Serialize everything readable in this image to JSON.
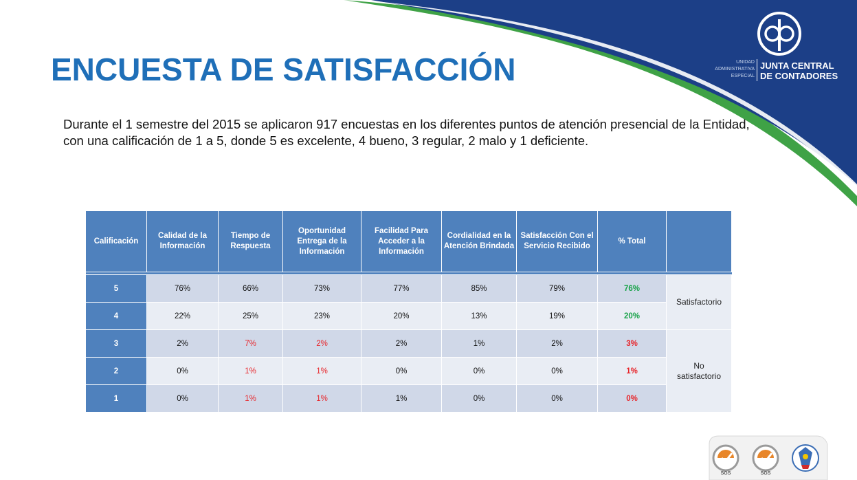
{
  "title": "ENCUESTA DE SATISFACCIÓN",
  "intro": "Durante el 1 semestre del 2015 se aplicaron 917 encuestas en los diferentes puntos de atención presencial de la Entidad, con una calificación de 1 a 5, donde 5 es excelente, 4 bueno, 3 regular, 2 malo y 1 deficiente.",
  "logo": {
    "side_lines": [
      "UNIDAD",
      "ADMINISTRATIVA",
      "ESPECIAL"
    ],
    "name_lines": [
      "JUNTA CENTRAL",
      "DE CONTADORES"
    ]
  },
  "colors": {
    "title_blue": "#1f6fb8",
    "header_blue": "#4f81bd",
    "swoosh_navy": "#1c3f87",
    "swoosh_green": "#3fa246",
    "positive_green": "#1aa34a",
    "negative_red": "#e8252a"
  },
  "table": {
    "headers": [
      "Calificación",
      "Calidad de la Información",
      "Tiempo de Respuesta",
      "Oportunidad Entrega de la Información",
      "Facilidad Para Acceder a la Información",
      "Cordialidad en la Atención Brindada",
      "Satisfacción Con el Servicio Recibido",
      "% Total",
      ""
    ],
    "rows": [
      {
        "rating": "5",
        "values": [
          "76%",
          "66%",
          "73%",
          "77%",
          "85%",
          "79%"
        ],
        "total": "76%"
      },
      {
        "rating": "4",
        "values": [
          "22%",
          "25%",
          "23%",
          "20%",
          "13%",
          "19%"
        ],
        "total": "20%"
      },
      {
        "rating": "3",
        "values": [
          "2%",
          "7%",
          "2%",
          "2%",
          "1%",
          "2%"
        ],
        "total": "3%"
      },
      {
        "rating": "2",
        "values": [
          "0%",
          "1%",
          "1%",
          "0%",
          "0%",
          "0%"
        ],
        "total": "1%"
      },
      {
        "rating": "1",
        "values": [
          "0%",
          "1%",
          "1%",
          "1%",
          "0%",
          "0%"
        ],
        "total": "0%"
      }
    ],
    "groups": {
      "satisfied": "Satisfactorio",
      "not_satisfied_lines": [
        "No",
        "satisfactorio"
      ]
    }
  },
  "certifications": {
    "badges": [
      "SGS",
      "SGS"
    ],
    "icons": [
      "sgs-iso-9001-icon",
      "sgs-iso-14001-icon",
      "colombia-seal-icon"
    ]
  }
}
